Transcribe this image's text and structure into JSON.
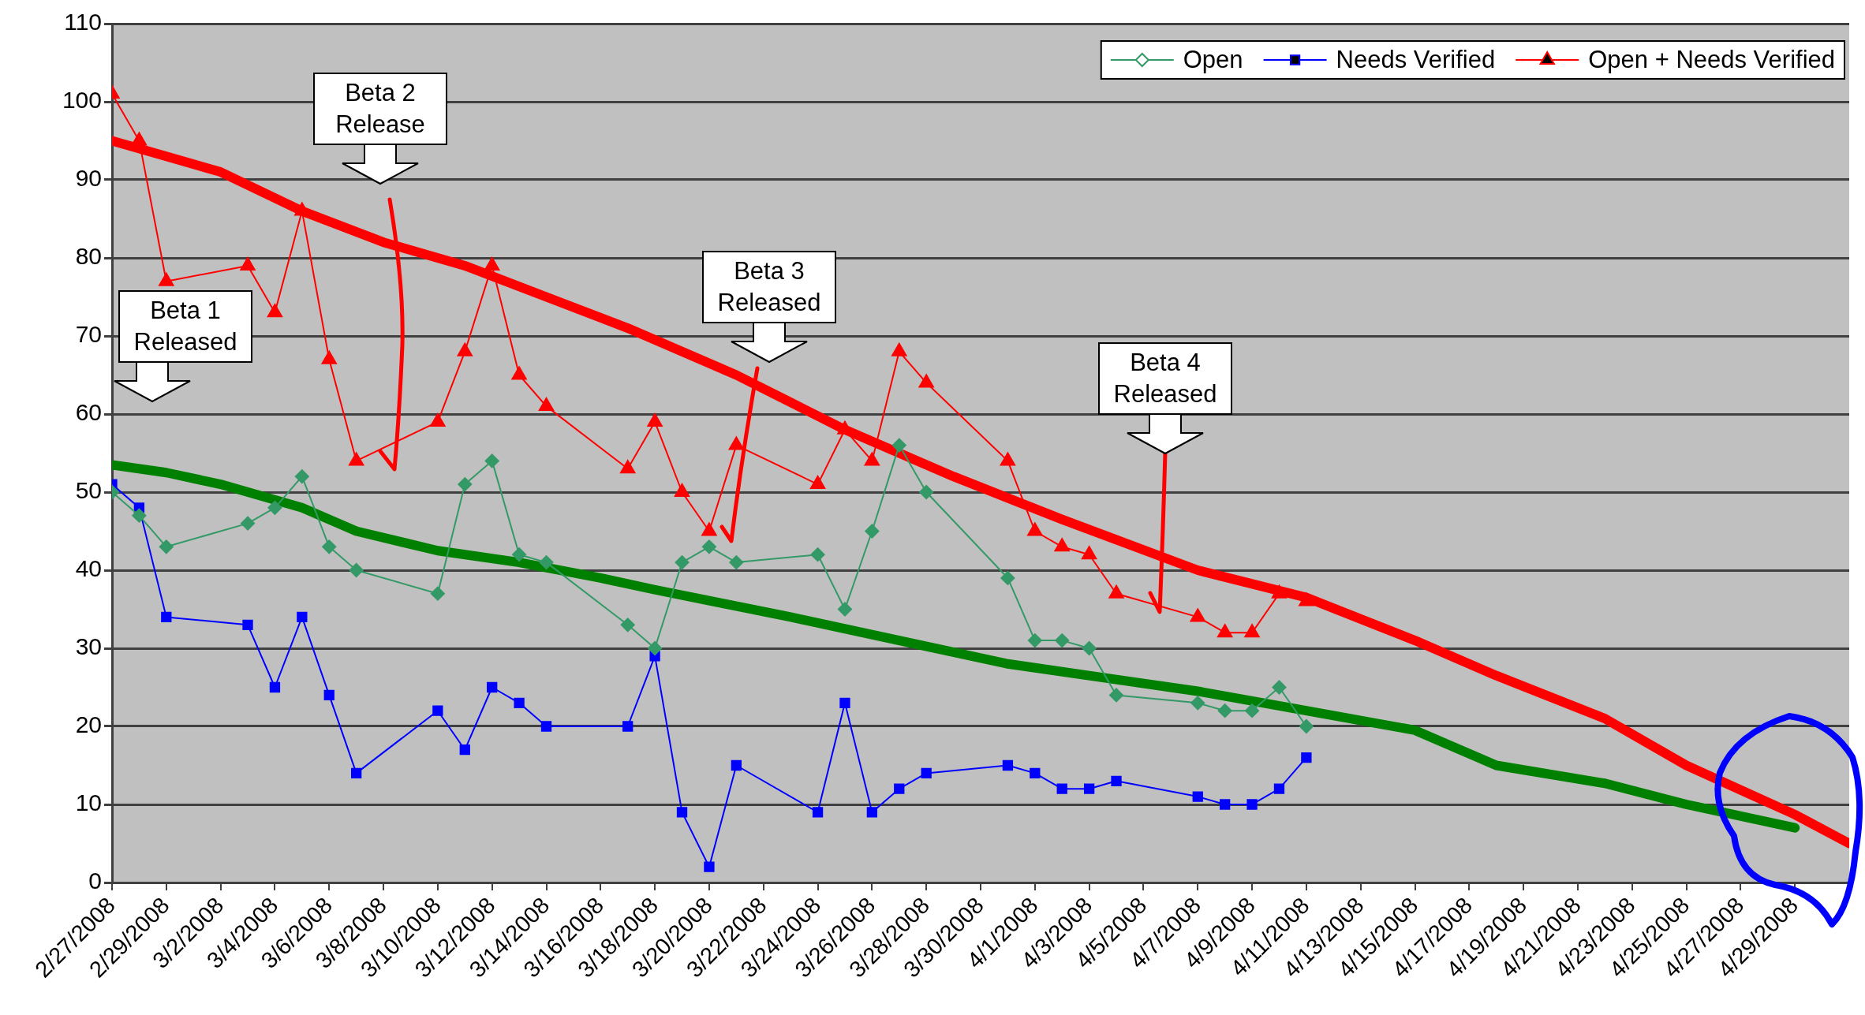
{
  "chart_data": {
    "type": "line",
    "x": [
      "2008-02-27",
      "2008-02-28",
      "2008-02-29",
      "2008-03-03",
      "2008-03-04",
      "2008-03-05",
      "2008-03-06",
      "2008-03-07",
      "2008-03-10",
      "2008-03-11",
      "2008-03-12",
      "2008-03-13",
      "2008-03-14",
      "2008-03-17",
      "2008-03-18",
      "2008-03-19",
      "2008-03-20",
      "2008-03-21",
      "2008-03-24",
      "2008-03-25",
      "2008-03-26",
      "2008-03-27",
      "2008-03-28",
      "2008-03-31",
      "2008-04-01",
      "2008-04-02",
      "2008-04-03",
      "2008-04-04",
      "2008-04-07",
      "2008-04-08",
      "2008-04-09",
      "2008-04-10",
      "2008-04-11"
    ],
    "series": [
      {
        "name": "Open",
        "color": "#339966",
        "marker": "diamond",
        "values": [
          50,
          47,
          43,
          46,
          48,
          52,
          43,
          40,
          37,
          51,
          54,
          42,
          41,
          33,
          30,
          41,
          43,
          41,
          42,
          35,
          45,
          56,
          50,
          39,
          31,
          31,
          30,
          24,
          23,
          22,
          22,
          25,
          20
        ]
      },
      {
        "name": "Needs Verified",
        "color": "#0000ff",
        "marker": "square",
        "values": [
          51,
          48,
          34,
          33,
          25,
          34,
          24,
          14,
          22,
          17,
          25,
          23,
          20,
          20,
          29,
          9,
          2,
          15,
          9,
          23,
          9,
          12,
          14,
          15,
          14,
          12,
          12,
          13,
          11,
          10,
          10,
          12,
          16
        ]
      },
      {
        "name": "Open + Needs Verified",
        "color": "#ff0000",
        "marker": "triangle",
        "values": [
          101,
          95,
          77,
          79,
          73,
          86,
          67,
          54,
          59,
          68,
          79,
          65,
          61,
          53,
          59,
          50,
          45,
          56,
          51,
          58,
          54,
          68,
          64,
          54,
          45,
          43,
          42,
          37,
          34,
          32,
          32,
          37,
          36
        ]
      },
      {
        "type": "line",
        "color": "#ff0000",
        "marker": "none",
        "x": [
          "2008-02-27",
          "2008-02-29",
          "2008-03-02",
          "2008-03-05",
          "2008-03-08",
          "2008-03-11",
          "2008-03-14",
          "2008-03-17",
          "2008-03-21",
          "2008-03-25",
          "2008-03-29",
          "2008-04-02",
          "2008-04-07",
          "2008-04-11",
          "2008-04-15",
          "2008-04-18",
          "2008-04-22",
          "2008-04-25",
          "2008-04-29",
          "2008-05-01"
        ],
        "values": [
          95,
          93,
          91,
          86,
          82,
          79,
          75,
          71,
          65,
          58,
          52,
          46.5,
          40,
          36.5,
          31,
          26.5,
          21,
          15,
          8.7,
          5
        ]
      },
      {
        "type": "line",
        "color": "#008000",
        "marker": "none",
        "x": [
          "2008-02-27",
          "2008-02-29",
          "2008-03-02",
          "2008-03-05",
          "2008-03-07",
          "2008-03-10",
          "2008-03-13",
          "2008-03-16",
          "2008-03-18",
          "2008-03-23",
          "2008-03-27",
          "2008-03-31",
          "2008-04-04",
          "2008-04-07",
          "2008-04-11",
          "2008-04-15",
          "2008-04-18",
          "2008-04-22",
          "2008-04-25",
          "2008-04-29"
        ],
        "values": [
          53.5,
          52.5,
          51,
          48,
          45,
          42.5,
          41,
          39,
          37.5,
          34,
          31,
          28,
          26,
          24.5,
          22,
          19.5,
          15,
          12.7,
          10,
          7
        ]
      }
    ],
    "xlim": [
      "2008-02-27",
      "2008-05-01"
    ],
    "xticks": [
      {
        "value": "2008-02-27",
        "label": "2/27/2008"
      },
      {
        "value": "2008-02-29",
        "label": "2/29/2008"
      },
      {
        "value": "2008-03-02",
        "label": "3/2/2008"
      },
      {
        "value": "2008-03-04",
        "label": "3/4/2008"
      },
      {
        "value": "2008-03-06",
        "label": "3/6/2008"
      },
      {
        "value": "2008-03-08",
        "label": "3/8/2008"
      },
      {
        "value": "2008-03-10",
        "label": "3/10/2008"
      },
      {
        "value": "2008-03-12",
        "label": "3/12/2008"
      },
      {
        "value": "2008-03-14",
        "label": "3/14/2008"
      },
      {
        "value": "2008-03-16",
        "label": "3/16/2008"
      },
      {
        "value": "2008-03-18",
        "label": "3/18/2008"
      },
      {
        "value": "2008-03-20",
        "label": "3/20/2008"
      },
      {
        "value": "2008-03-22",
        "label": "3/22/2008"
      },
      {
        "value": "2008-03-24",
        "label": "3/24/2008"
      },
      {
        "value": "2008-03-26",
        "label": "3/26/2008"
      },
      {
        "value": "2008-03-28",
        "label": "3/28/2008"
      },
      {
        "value": "2008-03-30",
        "label": "3/30/2008"
      },
      {
        "value": "2008-04-01",
        "label": "4/1/2008"
      },
      {
        "value": "2008-04-03",
        "label": "4/3/2008"
      },
      {
        "value": "2008-04-05",
        "label": "4/5/2008"
      },
      {
        "value": "2008-04-07",
        "label": "4/7/2008"
      },
      {
        "value": "2008-04-09",
        "label": "4/9/2008"
      },
      {
        "value": "2008-04-11",
        "label": "4/11/2008"
      },
      {
        "value": "2008-04-13",
        "label": "4/13/2008"
      },
      {
        "value": "2008-04-15",
        "label": "4/15/2008"
      },
      {
        "value": "2008-04-17",
        "label": "4/17/2008"
      },
      {
        "value": "2008-04-19",
        "label": "4/19/2008"
      },
      {
        "value": "2008-04-21",
        "label": "4/21/2008"
      },
      {
        "value": "2008-04-23",
        "label": "4/23/2008"
      },
      {
        "value": "2008-04-25",
        "label": "4/25/2008"
      },
      {
        "value": "2008-04-27",
        "label": "4/27/2008"
      },
      {
        "value": "2008-04-29",
        "label": "4/29/2008"
      }
    ],
    "ylim": [
      0,
      110
    ],
    "yticks": [
      0,
      10,
      20,
      30,
      40,
      50,
      60,
      70,
      80,
      90,
      100,
      110
    ],
    "grid": "y",
    "legend": "top right",
    "annotations": [
      "Beta 1 Released",
      "Beta 2 Release",
      "Beta 3 Released",
      "Beta 4 Released"
    ]
  }
}
